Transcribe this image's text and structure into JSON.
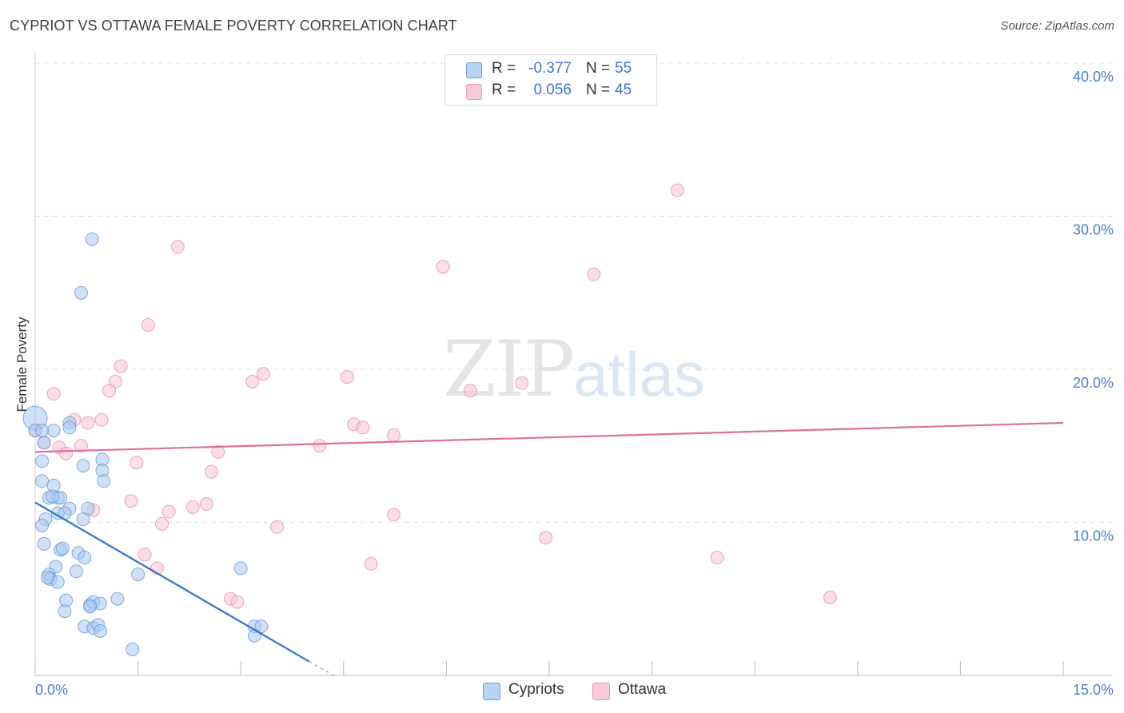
{
  "header": {
    "title": "CYPRIOT VS OTTAWA FEMALE POVERTY CORRELATION CHART",
    "source": "Source: ZipAtlas.com"
  },
  "watermark": {
    "zip": "ZIP",
    "atlas": "atlas"
  },
  "legend": {
    "rows": [
      {
        "r_label": "R =",
        "r_value": "-0.377",
        "n_label": "N =",
        "n_value": "55"
      },
      {
        "r_label": "R =",
        "r_value": "0.056",
        "n_label": "N =",
        "n_value": "45"
      }
    ]
  },
  "bottom_legend": {
    "cypriots": "Cypriots",
    "ottawa": "Ottawa"
  },
  "colors": {
    "cypriots_fill": "#a9c8f0",
    "cypriots_stroke": "#5b93d8",
    "cypriots_line": "#2f74d0",
    "ottawa_fill": "#f8c3d3",
    "ottawa_stroke": "#e98aa8",
    "ottawa_line": "#e0709a",
    "axis_label": "#4a7fcf",
    "grid": "#e0e0e0"
  },
  "chart_data": {
    "type": "scatter",
    "title": "CYPRIOT VS OTTAWA FEMALE POVERTY CORRELATION CHART",
    "xlabel": "",
    "ylabel": "Female Poverty",
    "xlim": [
      0,
      15
    ],
    "ylim": [
      0,
      40
    ],
    "x_tick_labels": [
      "0.0%",
      "15.0%"
    ],
    "y_ticks": [
      10,
      20,
      30,
      40
    ],
    "y_tick_labels": [
      "10.0%",
      "20.0%",
      "30.0%",
      "40.0%"
    ],
    "grid": true,
    "legend_position": "top-center",
    "series": [
      {
        "name": "Cypriots",
        "r": -0.377,
        "n": 55,
        "points": [
          [
            0.83,
            28.5
          ],
          [
            0.67,
            25.0
          ],
          [
            0.0,
            16.8
          ],
          [
            0.0,
            16.0
          ],
          [
            0.13,
            15.2
          ],
          [
            0.27,
            16.0
          ],
          [
            0.5,
            16.5
          ],
          [
            0.5,
            16.2
          ],
          [
            0.1,
            14.0
          ],
          [
            0.7,
            13.7
          ],
          [
            0.98,
            14.1
          ],
          [
            0.98,
            13.4
          ],
          [
            1.0,
            12.7
          ],
          [
            0.1,
            12.7
          ],
          [
            0.27,
            12.4
          ],
          [
            0.2,
            11.6
          ],
          [
            0.33,
            11.6
          ],
          [
            0.37,
            11.6
          ],
          [
            0.5,
            10.9
          ],
          [
            0.77,
            10.9
          ],
          [
            0.33,
            10.6
          ],
          [
            0.43,
            10.6
          ],
          [
            0.15,
            10.2
          ],
          [
            0.7,
            10.2
          ],
          [
            0.1,
            9.8
          ],
          [
            0.13,
            8.6
          ],
          [
            0.37,
            8.2
          ],
          [
            0.4,
            8.3
          ],
          [
            0.63,
            8.0
          ],
          [
            0.72,
            7.7
          ],
          [
            0.3,
            7.1
          ],
          [
            0.6,
            6.8
          ],
          [
            0.2,
            6.6
          ],
          [
            0.22,
            6.3
          ],
          [
            0.33,
            6.1
          ],
          [
            1.5,
            6.6
          ],
          [
            3.0,
            7.0
          ],
          [
            0.45,
            4.9
          ],
          [
            0.8,
            4.6
          ],
          [
            0.85,
            4.8
          ],
          [
            0.95,
            4.7
          ],
          [
            1.2,
            5.0
          ],
          [
            0.43,
            4.2
          ],
          [
            0.72,
            3.2
          ],
          [
            0.85,
            3.1
          ],
          [
            0.92,
            3.3
          ],
          [
            0.95,
            2.9
          ],
          [
            3.2,
            3.2
          ],
          [
            3.3,
            3.2
          ],
          [
            3.2,
            2.6
          ],
          [
            1.42,
            1.7
          ],
          [
            0.1,
            16.0
          ],
          [
            0.25,
            11.7
          ],
          [
            0.8,
            4.5
          ],
          [
            0.18,
            6.4
          ]
        ],
        "trend": {
          "x": [
            0.0,
            4.0
          ],
          "y": [
            11.3,
            0.9
          ],
          "dashed_extension": {
            "x": [
              4.0,
              4.4
            ],
            "y": [
              0.9,
              -0.1
            ]
          }
        }
      },
      {
        "name": "Ottawa",
        "r": 0.056,
        "n": 45,
        "points": [
          [
            9.37,
            31.7
          ],
          [
            2.08,
            28.0
          ],
          [
            5.95,
            26.7
          ],
          [
            8.15,
            26.2
          ],
          [
            1.65,
            22.9
          ],
          [
            1.25,
            20.2
          ],
          [
            1.17,
            19.2
          ],
          [
            1.08,
            18.6
          ],
          [
            3.33,
            19.7
          ],
          [
            3.17,
            19.2
          ],
          [
            4.55,
            19.5
          ],
          [
            7.1,
            19.1
          ],
          [
            6.35,
            18.6
          ],
          [
            0.27,
            18.4
          ],
          [
            0.57,
            16.7
          ],
          [
            0.77,
            16.5
          ],
          [
            0.97,
            16.7
          ],
          [
            4.65,
            16.4
          ],
          [
            4.78,
            16.2
          ],
          [
            5.23,
            15.7
          ],
          [
            0.0,
            16.0
          ],
          [
            0.13,
            15.2
          ],
          [
            0.35,
            14.9
          ],
          [
            0.67,
            15.0
          ],
          [
            4.15,
            15.0
          ],
          [
            0.45,
            14.5
          ],
          [
            2.67,
            14.6
          ],
          [
            1.48,
            13.9
          ],
          [
            2.57,
            13.3
          ],
          [
            1.4,
            11.4
          ],
          [
            0.85,
            10.8
          ],
          [
            1.95,
            10.7
          ],
          [
            2.3,
            11.0
          ],
          [
            2.5,
            11.2
          ],
          [
            5.23,
            10.5
          ],
          [
            1.85,
            9.9
          ],
          [
            3.53,
            9.7
          ],
          [
            7.45,
            9.0
          ],
          [
            1.6,
            7.9
          ],
          [
            1.78,
            7.0
          ],
          [
            4.9,
            7.3
          ],
          [
            9.95,
            7.7
          ],
          [
            2.85,
            5.0
          ],
          [
            2.95,
            4.8
          ],
          [
            11.6,
            5.1
          ]
        ],
        "trend": {
          "x": [
            0.0,
            15.0
          ],
          "y": [
            14.6,
            16.5
          ]
        }
      }
    ]
  }
}
